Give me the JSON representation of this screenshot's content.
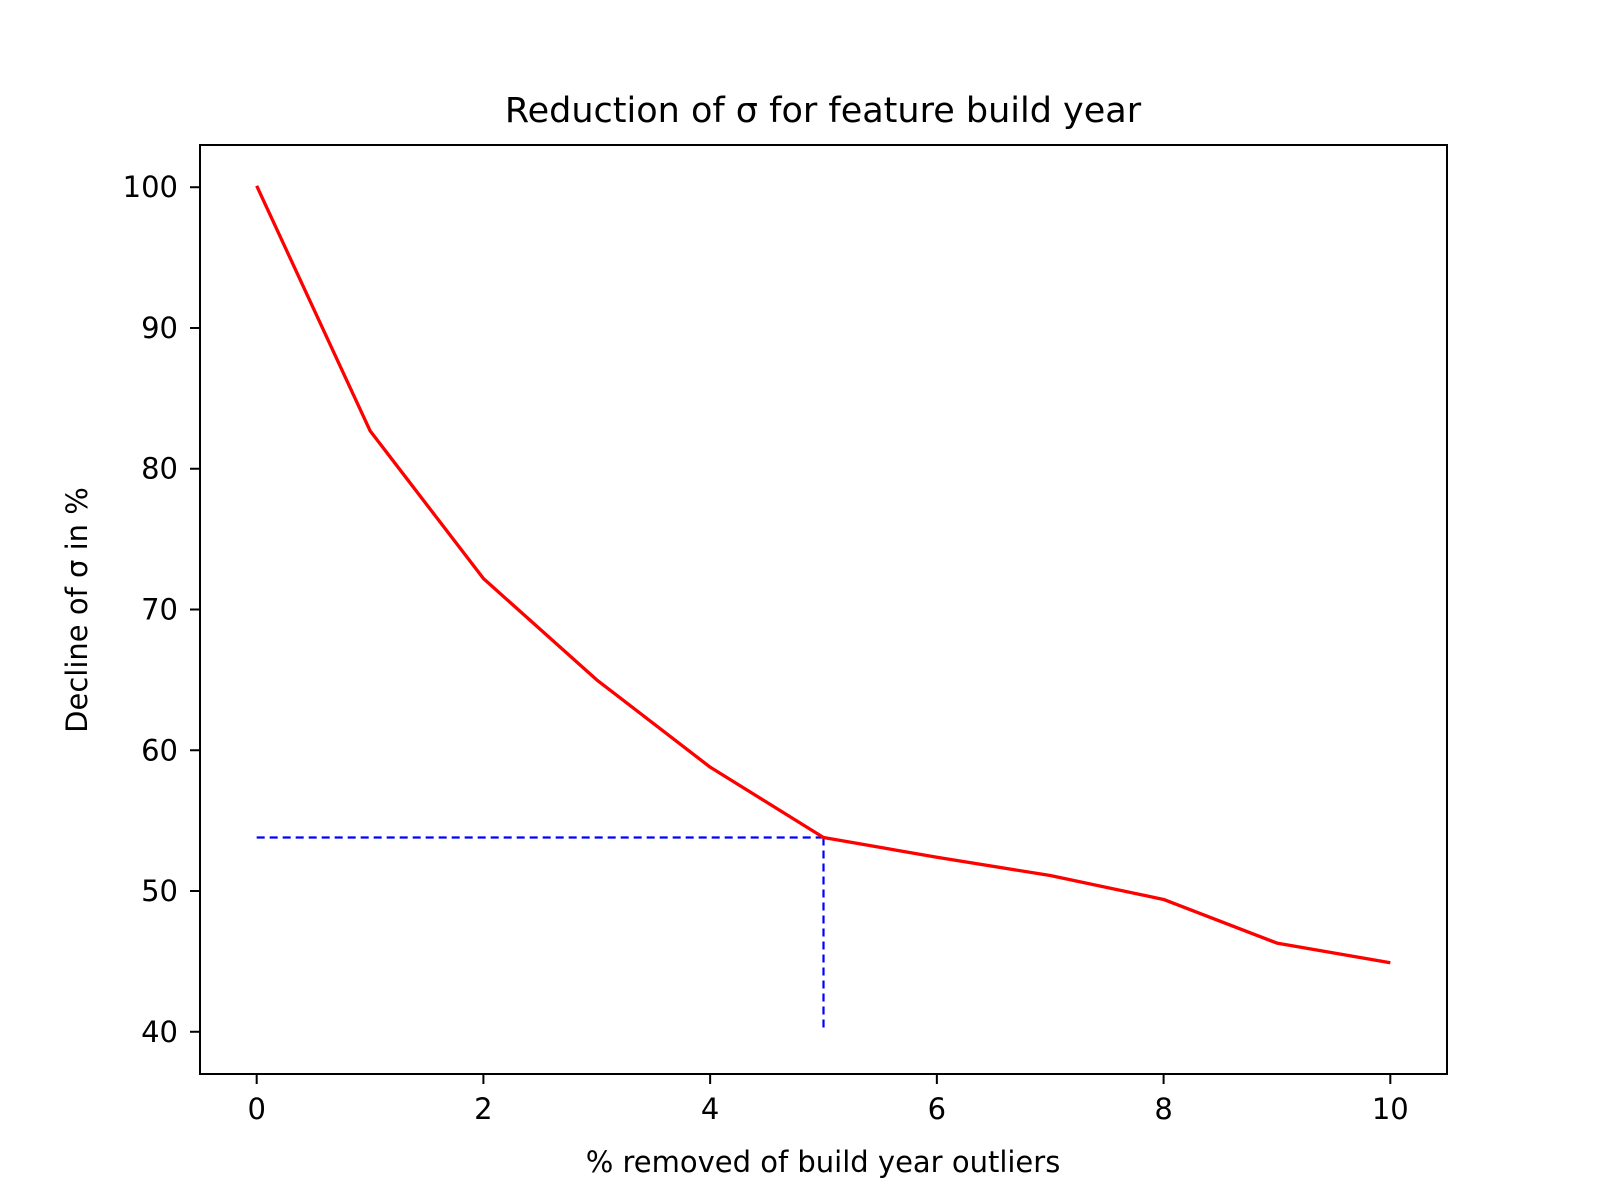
{
  "chart_data": {
    "type": "line",
    "title": "Reduction of σ for feature build year",
    "xlabel": "% removed of build year outliers",
    "ylabel": "Decline of σ in %",
    "xlim": [
      -0.5,
      10.5
    ],
    "ylim": [
      37,
      103
    ],
    "xticks": [
      0,
      2,
      4,
      6,
      8,
      10
    ],
    "yticks": [
      40,
      50,
      60,
      70,
      80,
      90,
      100
    ],
    "grid": false,
    "series": [
      {
        "color": "#ff0000",
        "style": "solid",
        "x": [
          0,
          1,
          2,
          3,
          4,
          5,
          6,
          7,
          8,
          9,
          10
        ],
        "y": [
          100.1,
          82.7,
          72.2,
          65.0,
          58.8,
          53.8,
          52.4,
          51.1,
          49.4,
          46.3,
          44.9
        ]
      }
    ],
    "reference_lines": [
      {
        "color": "#0000ff",
        "style": "dashed",
        "x": [
          0,
          5
        ],
        "y": [
          53.8,
          53.8
        ]
      },
      {
        "color": "#0000ff",
        "style": "dashed",
        "x": [
          5,
          5
        ],
        "y": [
          53.8,
          40
        ]
      }
    ]
  }
}
